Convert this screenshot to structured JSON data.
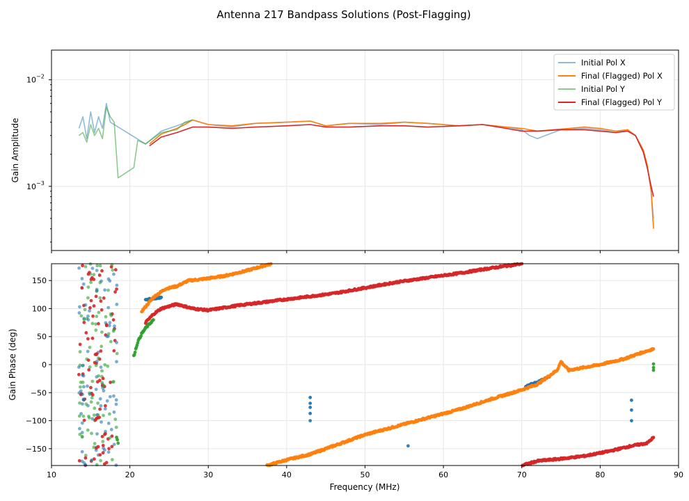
{
  "figure": {
    "title": "Antenna 217 Bandpass Solutions (Post-Flagging)"
  },
  "colors": {
    "initial_x": "#1f77b4",
    "final_x": "#ff7f0e",
    "initial_y": "#2ca02c",
    "final_y": "#d62728",
    "grid": "#e6e6e6"
  },
  "chart_data": [
    {
      "type": "line",
      "ylabel": "Gain Amplitude",
      "yscale": "log",
      "xlim": [
        10,
        90
      ],
      "ylim": [
        0.00025,
        0.019
      ],
      "y_major_ticks": [
        {
          "value": 0.001,
          "label_base": "10",
          "label_exp": "−3"
        },
        {
          "value": 0.01,
          "label_base": "10",
          "label_exp": "−2"
        }
      ],
      "grid": true,
      "legend": "top-right",
      "series": [
        {
          "name": "Initial Pol X",
          "key": "initial_x",
          "opacity": 0.5,
          "x": [
            13.5,
            14.0,
            14.5,
            15.0,
            15.5,
            16.0,
            16.5,
            17.0,
            17.5,
            22.0,
            24.0,
            26.0,
            28.0,
            30.0,
            33.0,
            36.0,
            40.0,
            43.0,
            45.0,
            48.0,
            52.0,
            55.0,
            58.0,
            62.0,
            65.0,
            68.0,
            70.0,
            71.0,
            72.0,
            73.0,
            75.0,
            78.0,
            80.0,
            82.0,
            83.5,
            84.5,
            85.5,
            86.0,
            86.5,
            86.8
          ],
          "y": [
            0.0035,
            0.0045,
            0.0028,
            0.005,
            0.0032,
            0.0045,
            0.0035,
            0.006,
            0.004,
            0.0025,
            0.0033,
            0.0037,
            0.0042,
            0.0038,
            0.0036,
            0.0039,
            0.004,
            0.0041,
            0.0037,
            0.0039,
            0.0038,
            0.004,
            0.0039,
            0.0037,
            0.0038,
            0.0036,
            0.0034,
            0.003,
            0.0028,
            0.003,
            0.0034,
            0.0035,
            0.0034,
            0.0032,
            0.0034,
            0.003,
            0.0022,
            0.0016,
            0.0009,
            0.0005
          ]
        },
        {
          "name": "Final (Flagged) Pol X",
          "key": "final_x",
          "opacity": 1,
          "x": [
            22.5,
            24.0,
            26.0,
            27.0,
            28.0,
            30.0,
            33.0,
            36.0,
            40.0,
            43.0,
            45.0,
            48.0,
            52.0,
            55.0,
            58.0,
            62.0,
            65.0,
            68.0,
            70.0,
            72.0,
            74.0,
            76.0,
            78.0,
            80.0,
            82.0,
            83.5,
            84.5,
            85.5,
            86.0,
            86.5,
            86.8
          ],
          "y": [
            0.0025,
            0.0031,
            0.0035,
            0.0038,
            0.0042,
            0.0038,
            0.0037,
            0.0039,
            0.004,
            0.0041,
            0.0037,
            0.0039,
            0.0039,
            0.004,
            0.0039,
            0.0037,
            0.0038,
            0.0036,
            0.0035,
            0.0033,
            0.0034,
            0.0035,
            0.0036,
            0.0035,
            0.0033,
            0.0034,
            0.003,
            0.0022,
            0.0016,
            0.0009,
            0.0004
          ]
        },
        {
          "name": "Initial Pol Y",
          "key": "initial_y",
          "opacity": 0.55,
          "x": [
            13.5,
            14.0,
            14.5,
            15.0,
            15.5,
            16.0,
            16.5,
            17.0,
            17.5,
            18.0,
            18.5,
            20.5,
            21.0,
            22.0,
            24.0,
            26.0,
            27.0,
            28.0
          ],
          "y": [
            0.003,
            0.0032,
            0.0026,
            0.0038,
            0.003,
            0.0035,
            0.0028,
            0.0055,
            0.0045,
            0.004,
            0.0012,
            0.0015,
            0.0027,
            0.0025,
            0.0032,
            0.0034,
            0.004,
            0.0042
          ]
        },
        {
          "name": "Final (Flagged) Pol Y",
          "key": "final_y",
          "opacity": 1,
          "x": [
            22.5,
            24.0,
            26.0,
            28.0,
            30.0,
            33.0,
            36.0,
            40.0,
            43.0,
            45.0,
            48.0,
            52.0,
            55.0,
            58.0,
            62.0,
            65.0,
            68.0,
            70.0,
            72.0,
            75.0,
            78.0,
            80.0,
            82.0,
            83.5,
            84.5,
            85.5,
            86.0,
            86.5,
            86.8
          ],
          "y": [
            0.0024,
            0.0029,
            0.0032,
            0.0036,
            0.0036,
            0.0035,
            0.0036,
            0.0037,
            0.0038,
            0.0036,
            0.0036,
            0.0037,
            0.0037,
            0.0036,
            0.0037,
            0.0038,
            0.0035,
            0.0033,
            0.0033,
            0.0034,
            0.0034,
            0.0033,
            0.0032,
            0.0033,
            0.003,
            0.0021,
            0.0015,
            0.001,
            0.0008
          ]
        }
      ],
      "annotations": []
    },
    {
      "type": "scatter",
      "xlabel": "Frequency (MHz)",
      "ylabel": "Gain Phase (deg)",
      "xlim": [
        10,
        90
      ],
      "ylim": [
        -180,
        180
      ],
      "x_ticks": [
        10,
        20,
        30,
        40,
        50,
        60,
        70,
        80,
        90
      ],
      "y_ticks": [
        -150,
        -100,
        -50,
        0,
        50,
        100,
        150
      ],
      "grid": true,
      "series": [
        {
          "key": "initial_x",
          "segments": [
            {
              "x": [
                22.0,
                23.0,
                24.0
              ],
              "y": [
                115,
                118,
                120
              ]
            },
            {
              "x": [
                70.5,
                71.5,
                72.5,
                73.5
              ],
              "y": [
                -38,
                -34,
                -28,
                -22
              ]
            },
            {
              "x": [
                43.0,
                43.0,
                43.0,
                55.5,
                84.0,
                84.0
              ],
              "y": [
                -60,
                -75,
                -100,
                -145,
                -65,
                -100
              ]
            }
          ]
        },
        {
          "key": "final_x",
          "segments": [
            {
              "x": [
                21.5,
                23.0,
                24.5,
                26.0,
                27.5,
                29.0,
                32.0,
                35.0,
                38.0
              ],
              "y": [
                95,
                120,
                135,
                140,
                150,
                152,
                158,
                168,
                180
              ]
            },
            {
              "x": [
                37.5,
                40.0,
                43.0,
                46.0,
                50.0,
                54.0,
                58.0,
                62.0,
                66.0,
                70.0,
                72.0,
                74.5,
                75.0,
                76.0,
                80.0,
                83.0,
                85.0,
                86.8
              ],
              "y": [
                -180,
                -170,
                -160,
                -145,
                -125,
                -110,
                -95,
                -80,
                -62,
                -45,
                -35,
                -10,
                5,
                -10,
                0,
                10,
                20,
                28
              ]
            }
          ]
        },
        {
          "key": "initial_y",
          "segments": [
            {
              "x": [
                20.5,
                21.0,
                21.5,
                22.0,
                23.0
              ],
              "y": [
                15,
                40,
                55,
                65,
                80
              ]
            },
            {
              "x": [
                18.3,
                18.5,
                86.8,
                86.8
              ],
              "y": [
                -130,
                -140,
                0,
                -10
              ]
            }
          ]
        },
        {
          "key": "final_y",
          "segments": [
            {
              "x": [
                22.0,
                23.0,
                24.0,
                26.0,
                28.0,
                30.0,
                34.0,
                38.0,
                42.0,
                46.0,
                50.0,
                54.0,
                58.0,
                62.0,
                66.0,
                70.0
              ],
              "y": [
                75,
                90,
                100,
                108,
                100,
                97,
                106,
                113,
                120,
                127,
                137,
                147,
                155,
                163,
                172,
                180
              ]
            },
            {
              "x": [
                70.0,
                72.0,
                75.0,
                78.0,
                81.0,
                84.0,
                86.0,
                86.8
              ],
              "y": [
                -180,
                -172,
                -168,
                -163,
                -155,
                -145,
                -140,
                -130
              ]
            }
          ]
        }
      ],
      "scatter_bands": [
        {
          "x_range": [
            13.5,
            18.5
          ],
          "y_range": [
            -180,
            180
          ],
          "keys": [
            "initial_x",
            "initial_y",
            "final_y"
          ]
        }
      ]
    }
  ]
}
